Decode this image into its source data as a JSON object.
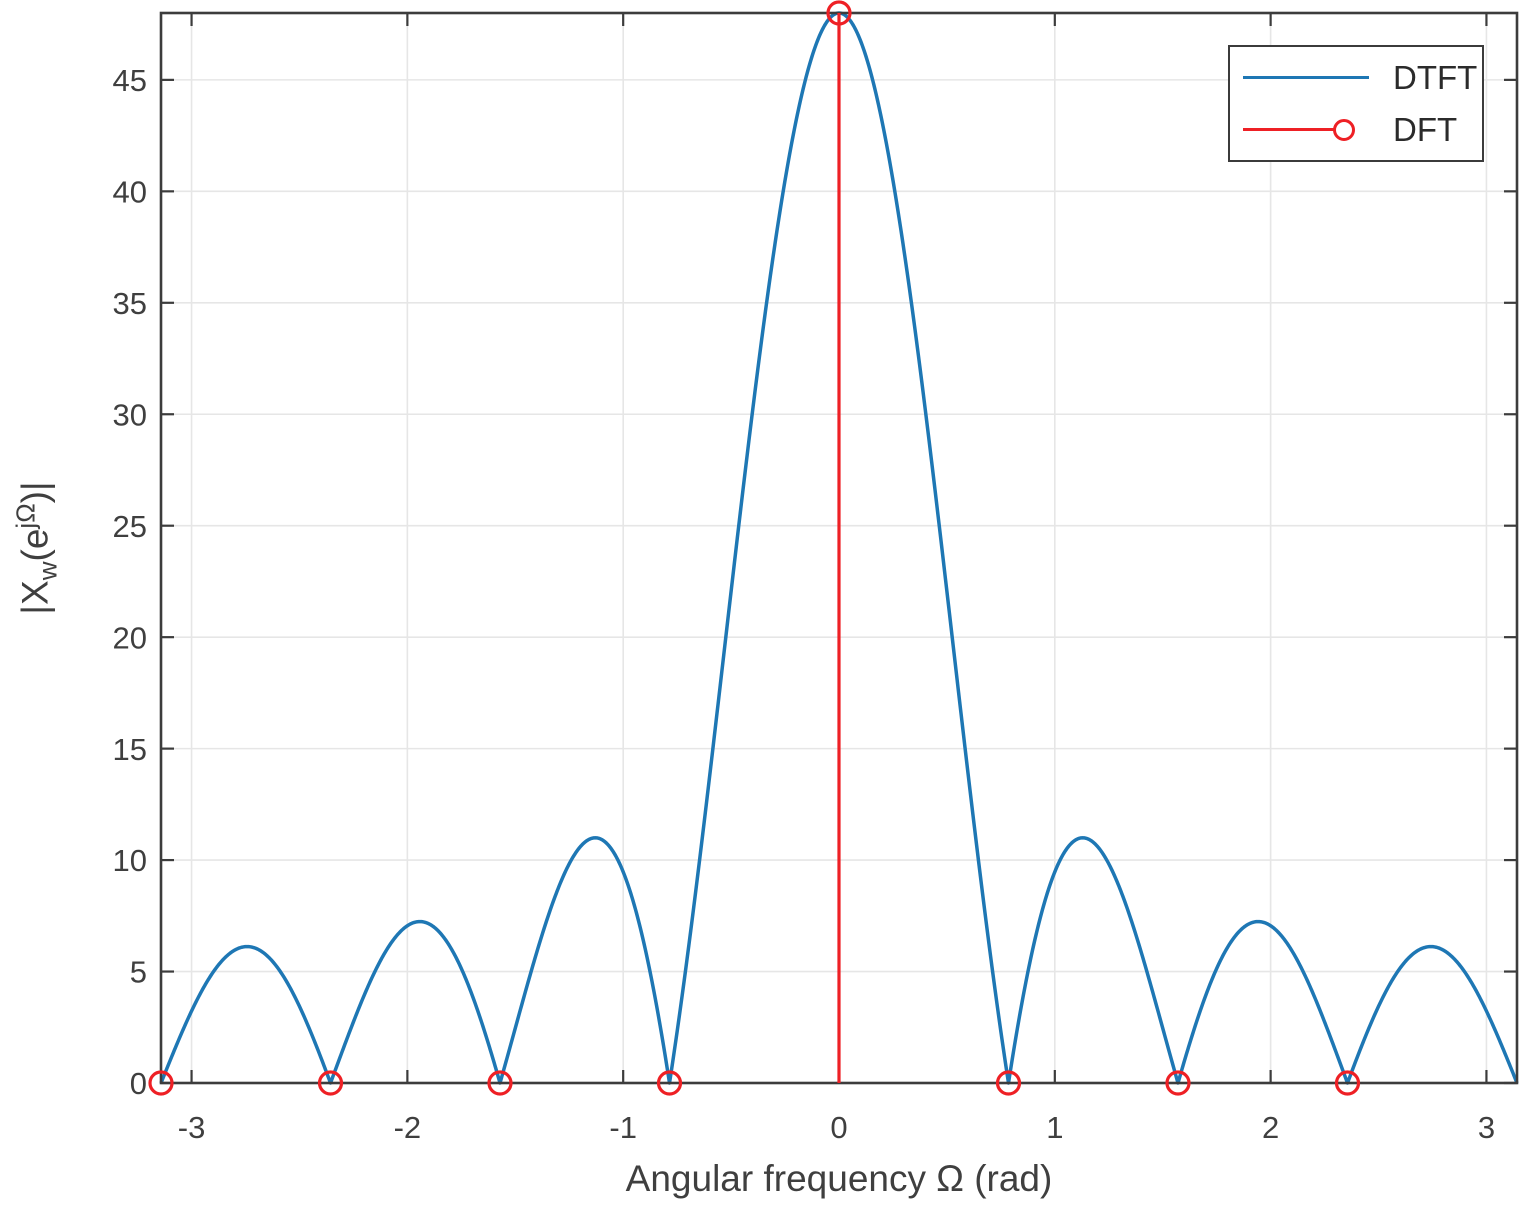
{
  "chart_data": {
    "type": "line",
    "title": "",
    "xlabel": "Angular frequency Ω (rad)",
    "ylabel": "|X_w(e^jΩ)|",
    "ylabel_parts": {
      "base1": "|X",
      "sub": "w",
      "base2": "(e",
      "sup": "jΩ",
      "base3": ")|"
    },
    "xlim": [
      -3.141593,
      3.141593
    ],
    "ylim": [
      0,
      48
    ],
    "xticks": [
      -3,
      -2,
      -1,
      0,
      1,
      2,
      3
    ],
    "yticks": [
      0,
      5,
      10,
      15,
      20,
      25,
      30,
      35,
      40,
      45
    ],
    "grid": true,
    "legend": {
      "position": "top-right",
      "entries": [
        {
          "label": "DTFT",
          "color": "#1e77b4",
          "marker": "none"
        },
        {
          "label": "DFT",
          "color": "#ee2025",
          "marker": "circle"
        }
      ]
    },
    "style": {
      "grid_color": "#e6e6e6",
      "axis_color": "#3c3c3c",
      "text_color": "#3f3f3f",
      "background": "#ffffff"
    },
    "series": [
      {
        "name": "DTFT",
        "kind": "curve",
        "color": "#1e77b4",
        "formula": "y = 6*|sin(4*Omega)/sin(Omega/2)|",
        "params": {
          "amplitude": 6,
          "N": 8,
          "samples": 1400
        },
        "peak": {
          "x": 0,
          "y": 48
        },
        "zeros": [
          -3.141593,
          -2.356194,
          -1.570796,
          -0.785398,
          0.785398,
          1.570796,
          2.356194,
          3.141593
        ],
        "sidelobe_peaks": [
          {
            "x": -2.7489,
            "y": 6.1
          },
          {
            "x": -1.9635,
            "y": 7.2
          },
          {
            "x": -1.1781,
            "y": 10.9
          },
          {
            "x": 1.1781,
            "y": 10.9
          },
          {
            "x": 1.9635,
            "y": 7.2
          },
          {
            "x": 2.7489,
            "y": 6.1
          }
        ]
      },
      {
        "name": "DFT",
        "kind": "stem",
        "color": "#ee2025",
        "marker": "circle",
        "points": [
          {
            "x": -3.141593,
            "y": 0
          },
          {
            "x": -2.356194,
            "y": 0
          },
          {
            "x": -1.570796,
            "y": 0
          },
          {
            "x": -0.785398,
            "y": 0
          },
          {
            "x": 0,
            "y": 48
          },
          {
            "x": 0.785398,
            "y": 0
          },
          {
            "x": 1.570796,
            "y": 0
          },
          {
            "x": 2.356194,
            "y": 0
          }
        ]
      }
    ]
  }
}
